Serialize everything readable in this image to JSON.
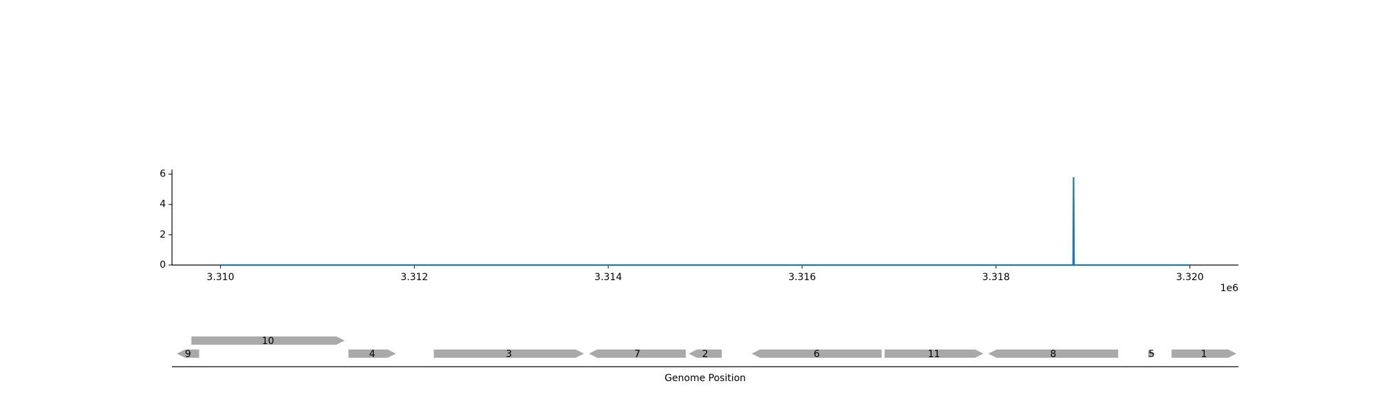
{
  "chart_data": [
    {
      "type": "line",
      "xlim": [
        3309500,
        3320500
      ],
      "ylim": [
        0,
        6.3
      ],
      "x_ticks": [
        3310000,
        3312000,
        3314000,
        3316000,
        3318000,
        3320000
      ],
      "x_tick_labels": [
        "3.310",
        "3.312",
        "3.314",
        "3.316",
        "3.318",
        "3.320"
      ],
      "x_offset_label": "1e6",
      "y_ticks": [
        0,
        2,
        4,
        6
      ],
      "y_tick_labels": [
        "0",
        "2",
        "4",
        "6"
      ],
      "grid": false,
      "series": [
        {
          "color": "#1f77b4",
          "x": [
            3310000,
            3318795,
            3318800,
            3318805,
            3320000
          ],
          "y": [
            0,
            0,
            5.8,
            0,
            0
          ]
        }
      ]
    },
    {
      "type": "gene-map",
      "xlabel": "Genome Position",
      "xlim": [
        3309500,
        3320500
      ],
      "feature_color": "#a9a9a9",
      "genes": [
        {
          "label": "9",
          "start": 3309550,
          "end": 3309780,
          "strand": -1,
          "track": 0
        },
        {
          "label": "10",
          "start": 3309700,
          "end": 3311280,
          "strand": 1,
          "track": 1
        },
        {
          "label": "4",
          "start": 3311320,
          "end": 3311810,
          "strand": 1,
          "track": 0
        },
        {
          "label": "3",
          "start": 3312200,
          "end": 3313750,
          "strand": 1,
          "track": 0
        },
        {
          "label": "7",
          "start": 3313800,
          "end": 3314800,
          "strand": -1,
          "track": 0
        },
        {
          "label": "2",
          "start": 3314830,
          "end": 3315170,
          "strand": -1,
          "track": 0
        },
        {
          "label": "6",
          "start": 3315480,
          "end": 3316820,
          "strand": -1,
          "track": 0
        },
        {
          "label": "11",
          "start": 3316850,
          "end": 3317870,
          "strand": 1,
          "track": 0
        },
        {
          "label": "8",
          "start": 3317920,
          "end": 3319260,
          "strand": -1,
          "track": 0
        },
        {
          "label": "5",
          "start": 3319570,
          "end": 3319640,
          "strand": 1,
          "track": 0
        },
        {
          "label": "1",
          "start": 3319810,
          "end": 3320480,
          "strand": 1,
          "track": 0
        }
      ]
    }
  ]
}
